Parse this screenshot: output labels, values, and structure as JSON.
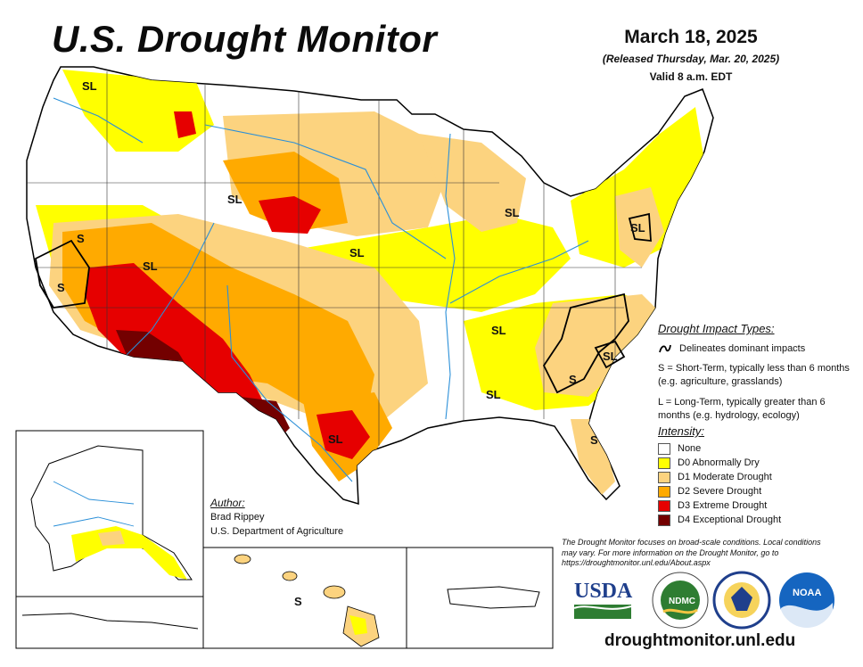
{
  "header": {
    "title": "U.S. Drought Monitor",
    "date": "March 18, 2025",
    "released": "(Released Thursday, Mar. 20, 2025)",
    "valid": "Valid 8 a.m. EDT"
  },
  "impact_types": {
    "heading": "Drought Impact Types:",
    "delineates": "Delineates dominant impacts",
    "short_term": "S = Short-Term, typically less than 6 months (e.g. agriculture, grasslands)",
    "long_term": "L = Long-Term, typically greater than 6 months (e.g. hydrology, ecology)"
  },
  "intensity": {
    "heading": "Intensity:",
    "levels": [
      {
        "label": "None",
        "color": "#ffffff"
      },
      {
        "label": "D0 Abnormally Dry",
        "color": "#ffff00"
      },
      {
        "label": "D1 Moderate Drought",
        "color": "#fcd37f"
      },
      {
        "label": "D2 Severe Drought",
        "color": "#ffaa00"
      },
      {
        "label": "D3 Extreme Drought",
        "color": "#e60000"
      },
      {
        "label": "D4 Exceptional Drought",
        "color": "#730000"
      }
    ]
  },
  "author": {
    "heading": "Author:",
    "name": "Brad Rippey",
    "org": "U.S. Department of Agriculture"
  },
  "map_labels": {
    "sl": "SL",
    "s": "S"
  },
  "footer": {
    "note": "The Drought Monitor focuses on broad-scale conditions. Local conditions may vary. For more information on the Drought Monitor, go to https://droughtmonitor.unl.edu/About.aspx",
    "url": "droughtmonitor.unl.edu",
    "logos": {
      "usda": "USDA",
      "ndmc": "NDMC",
      "noaa": "NOAA"
    }
  }
}
